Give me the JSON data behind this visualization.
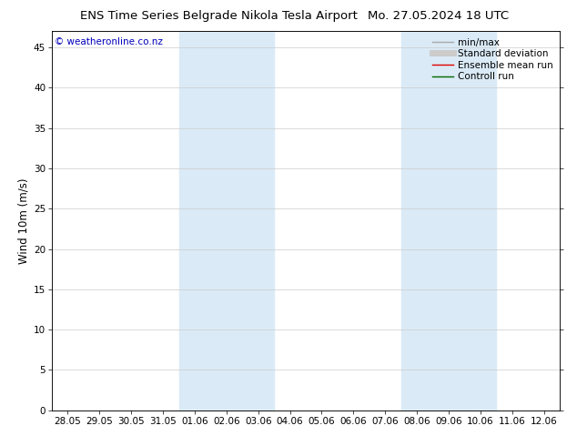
{
  "title_left": "ENS Time Series Belgrade Nikola Tesla Airport",
  "title_right": "Mo. 27.05.2024 18 UTC",
  "ylabel": "Wind 10m (m/s)",
  "watermark": "© weatheronline.co.nz",
  "xlim_labels": [
    "28.05",
    "29.05",
    "30.05",
    "31.05",
    "01.06",
    "02.06",
    "03.06",
    "04.06",
    "05.06",
    "06.06",
    "07.06",
    "08.06",
    "09.06",
    "10.06",
    "11.06",
    "12.06"
  ],
  "ylim": [
    0,
    47
  ],
  "yticks": [
    0,
    5,
    10,
    15,
    20,
    25,
    30,
    35,
    40,
    45
  ],
  "shaded_regions": [
    {
      "x_start": "01.06",
      "x_end": "03.06"
    },
    {
      "x_start": "08.06",
      "x_end": "10.06"
    }
  ],
  "shade_color": "#daeaf6",
  "bg_color": "#ffffff",
  "plot_bg_color": "#ffffff",
  "grid_color": "#cccccc",
  "legend_items": [
    {
      "label": "min/max",
      "color": "#aaaaaa",
      "lw": 1.0,
      "style": "solid"
    },
    {
      "label": "Standard deviation",
      "color": "#cccccc",
      "lw": 5,
      "style": "solid"
    },
    {
      "label": "Ensemble mean run",
      "color": "#dd0000",
      "lw": 1.0,
      "style": "solid"
    },
    {
      "label": "Controll run",
      "color": "#006600",
      "lw": 1.0,
      "style": "solid"
    }
  ],
  "title_fontsize": 9.5,
  "tick_fontsize": 7.5,
  "ylabel_fontsize": 8.5,
  "legend_fontsize": 7.5,
  "watermark_color": "#0000bb",
  "watermark_fontsize": 7.5
}
